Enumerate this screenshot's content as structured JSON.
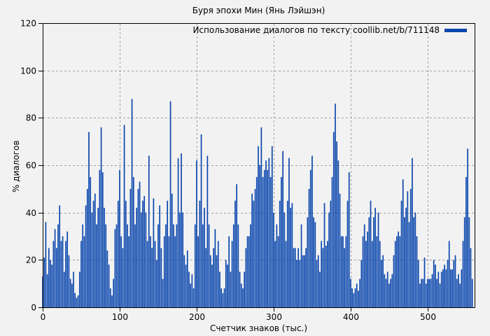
{
  "page": {
    "background": "#f2f2f2"
  },
  "chart": {
    "title": "Буря эпохи Мин (Янь Лэйшэн)",
    "legend_label": "Использование диалогов по тексту coollib.net/b/711148",
    "xlabel": "Счетчик знаков (тыс.)",
    "ylabel": "% диалогов"
  },
  "chart_data": {
    "type": "bar",
    "title": "Буря эпохи Мин (Янь Лэйшэн)",
    "xlabel": "Счетчик знаков (тыс.)",
    "ylabel": "% диалогов",
    "legend_position": "top-right",
    "xlim": [
      0,
      561
    ],
    "ylim": [
      0,
      120
    ],
    "xticks": [
      0,
      100,
      200,
      300,
      400,
      500
    ],
    "yticks": [
      0,
      20,
      40,
      60,
      80,
      100,
      120
    ],
    "grid": true,
    "bar_color": "#0b47ad",
    "grid_color": "#a0a0a0",
    "axis_color": "#000000",
    "series": [
      {
        "name": "Использование диалогов по тексту coollib.net/b/711148",
        "x": [
          0,
          2,
          4,
          6,
          8,
          10,
          12,
          14,
          16,
          18,
          20,
          22,
          24,
          26,
          28,
          30,
          32,
          34,
          36,
          38,
          40,
          42,
          44,
          46,
          48,
          50,
          52,
          54,
          56,
          58,
          60,
          62,
          64,
          66,
          68,
          70,
          72,
          74,
          76,
          78,
          80,
          82,
          84,
          86,
          88,
          90,
          92,
          94,
          96,
          98,
          100,
          102,
          104,
          106,
          108,
          110,
          112,
          114,
          116,
          118,
          120,
          122,
          124,
          126,
          128,
          130,
          132,
          134,
          136,
          138,
          140,
          142,
          144,
          146,
          148,
          150,
          152,
          154,
          156,
          158,
          160,
          162,
          164,
          166,
          168,
          170,
          172,
          174,
          176,
          178,
          180,
          182,
          184,
          186,
          188,
          190,
          192,
          194,
          196,
          198,
          200,
          202,
          204,
          206,
          208,
          210,
          212,
          214,
          216,
          218,
          220,
          222,
          224,
          226,
          228,
          230,
          232,
          234,
          236,
          238,
          240,
          242,
          244,
          246,
          248,
          250,
          252,
          254,
          256,
          258,
          260,
          262,
          264,
          266,
          268,
          270,
          272,
          274,
          276,
          278,
          280,
          282,
          284,
          286,
          288,
          290,
          292,
          294,
          296,
          298,
          300,
          302,
          304,
          306,
          308,
          310,
          312,
          314,
          316,
          318,
          320,
          322,
          324,
          326,
          328,
          330,
          332,
          334,
          336,
          338,
          340,
          342,
          344,
          346,
          348,
          350,
          352,
          354,
          356,
          358,
          360,
          362,
          364,
          366,
          368,
          370,
          372,
          374,
          376,
          378,
          380,
          382,
          384,
          386,
          388,
          390,
          392,
          394,
          396,
          398,
          400,
          402,
          404,
          406,
          408,
          410,
          412,
          414,
          416,
          418,
          420,
          422,
          424,
          426,
          428,
          430,
          432,
          434,
          436,
          438,
          440,
          442,
          444,
          446,
          448,
          450,
          452,
          454,
          456,
          458,
          460,
          462,
          464,
          466,
          468,
          470,
          472,
          474,
          476,
          478,
          480,
          482,
          484,
          486,
          488,
          490,
          492,
          494,
          496,
          498,
          500,
          502,
          504,
          506,
          508,
          510,
          512,
          514,
          516,
          518,
          520,
          522,
          524,
          526,
          528,
          530,
          532,
          534,
          536,
          538,
          540,
          542,
          544,
          546,
          548,
          550,
          552,
          554,
          556,
          558
        ],
        "values": [
          13,
          21,
          36,
          14,
          25,
          20,
          18,
          28,
          33,
          25,
          35,
          43,
          28,
          30,
          15,
          28,
          32,
          22,
          12,
          10,
          15,
          6,
          4,
          5,
          15,
          28,
          35,
          30,
          43,
          50,
          74,
          55,
          40,
          45,
          48,
          35,
          42,
          58,
          76,
          57,
          42,
          35,
          24,
          18,
          8,
          5,
          12,
          33,
          35,
          45,
          58,
          30,
          25,
          77,
          45,
          35,
          30,
          50,
          88,
          55,
          35,
          42,
          50,
          53,
          40,
          45,
          47,
          40,
          28,
          64,
          30,
          25,
          46,
          28,
          20,
          35,
          43,
          25,
          12,
          30,
          35,
          45,
          30,
          87,
          48,
          35,
          30,
          35,
          63,
          40,
          65,
          40,
          22,
          18,
          24,
          15,
          10,
          14,
          8,
          35,
          62,
          30,
          45,
          73,
          35,
          42,
          25,
          64,
          35,
          22,
          18,
          25,
          33,
          22,
          28,
          15,
          8,
          6,
          8,
          20,
          18,
          30,
          15,
          28,
          35,
          45,
          52,
          35,
          15,
          10,
          8,
          15,
          25,
          30,
          30,
          35,
          48,
          45,
          50,
          55,
          68,
          60,
          76,
          55,
          58,
          62,
          58,
          63,
          55,
          68,
          40,
          28,
          35,
          30,
          45,
          55,
          66,
          40,
          28,
          45,
          63,
          42,
          44,
          25,
          25,
          20,
          25,
          20,
          35,
          22,
          22,
          25,
          38,
          50,
          58,
          64,
          38,
          36,
          20,
          22,
          15,
          28,
          25,
          44,
          26,
          28,
          40,
          45,
          55,
          74,
          86,
          70,
          62,
          48,
          30,
          30,
          25,
          30,
          45,
          57,
          12,
          8,
          6,
          8,
          10,
          7,
          12,
          20,
          30,
          35,
          28,
          32,
          38,
          45,
          28,
          38,
          42,
          30,
          40,
          28,
          20,
          22,
          14,
          12,
          15,
          10,
          12,
          14,
          22,
          28,
          30,
          32,
          30,
          45,
          54,
          38,
          42,
          49,
          36,
          50,
          63,
          38,
          40,
          30,
          20,
          10,
          12,
          12,
          21,
          10,
          12,
          12,
          12,
          14,
          20,
          18,
          12,
          15,
          10,
          15,
          16,
          18,
          16,
          20,
          28,
          16,
          16,
          20,
          22,
          12,
          14,
          10,
          16,
          28,
          38,
          55,
          67,
          38,
          25,
          12
        ]
      }
    ]
  }
}
